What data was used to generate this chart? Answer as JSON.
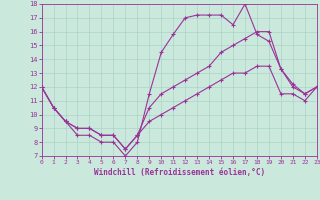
{
  "xlabel": "Windchill (Refroidissement éolien,°C)",
  "xlim": [
    0,
    23
  ],
  "ylim": [
    7,
    18
  ],
  "xticks": [
    0,
    1,
    2,
    3,
    4,
    5,
    6,
    7,
    8,
    9,
    10,
    11,
    12,
    13,
    14,
    15,
    16,
    17,
    18,
    19,
    20,
    21,
    22,
    23
  ],
  "yticks": [
    7,
    8,
    9,
    10,
    11,
    12,
    13,
    14,
    15,
    16,
    17,
    18
  ],
  "bg_color": "#cbe8dc",
  "line_color": "#993399",
  "grid_color": "#aad4c8",
  "line1_x": [
    0,
    1,
    2,
    3,
    4,
    5,
    6,
    7,
    8,
    9,
    10,
    11,
    12,
    13,
    14,
    15,
    16,
    17,
    18,
    19,
    20,
    21,
    22,
    23
  ],
  "line1_y": [
    12,
    10.5,
    9.5,
    8.5,
    8.5,
    8.0,
    8.0,
    7.0,
    8.0,
    11.5,
    14.5,
    15.8,
    17.0,
    17.2,
    17.2,
    17.2,
    16.5,
    18.0,
    15.8,
    15.3,
    13.3,
    12.0,
    11.5,
    12.0
  ],
  "line2_x": [
    0,
    1,
    2,
    3,
    4,
    5,
    6,
    7,
    8,
    9,
    10,
    11,
    12,
    13,
    14,
    15,
    16,
    17,
    18,
    19,
    20,
    21,
    22,
    23
  ],
  "line2_y": [
    12,
    10.5,
    9.5,
    9.0,
    9.0,
    8.5,
    8.5,
    7.5,
    8.5,
    10.5,
    11.5,
    12.0,
    12.5,
    13.0,
    13.5,
    14.5,
    15.0,
    15.5,
    16.0,
    16.0,
    13.3,
    12.2,
    11.5,
    12.0
  ],
  "line3_x": [
    0,
    1,
    2,
    3,
    4,
    5,
    6,
    7,
    8,
    9,
    10,
    11,
    12,
    13,
    14,
    15,
    16,
    17,
    18,
    19,
    20,
    21,
    22,
    23
  ],
  "line3_y": [
    12,
    10.5,
    9.5,
    9.0,
    9.0,
    8.5,
    8.5,
    7.5,
    8.5,
    9.5,
    10.0,
    10.5,
    11.0,
    11.5,
    12.0,
    12.5,
    13.0,
    13.0,
    13.5,
    13.5,
    11.5,
    11.5,
    11.0,
    12.0
  ]
}
